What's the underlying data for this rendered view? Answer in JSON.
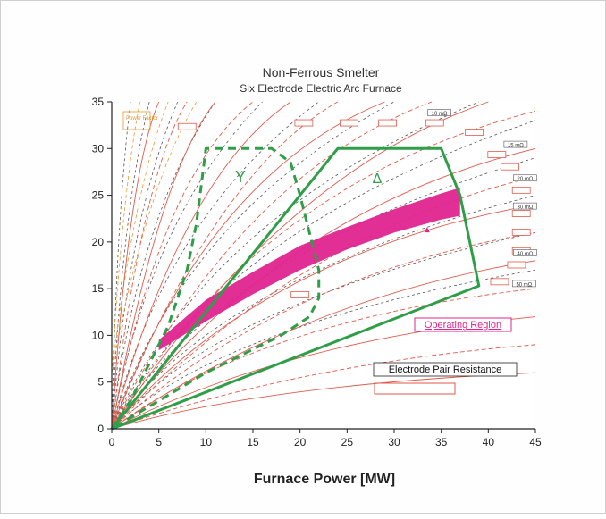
{
  "chart_data": {
    "type": "line",
    "title": "Non-Ferrous Smelter",
    "subtitle": "Six Electrode Electric Arc Furnace",
    "xlabel": "Furnace Power [MW]",
    "ylabel": "",
    "xlim": [
      0,
      45
    ],
    "ylim": [
      0,
      35
    ],
    "xticks": [
      "0",
      "5",
      "10",
      "15",
      "20",
      "25",
      "30",
      "35",
      "40",
      "45"
    ],
    "yticks": [
      "0",
      "5",
      "10",
      "15",
      "20",
      "25",
      "30",
      "35"
    ],
    "grid": false,
    "zones": {
      "wye": {
        "label": "Y",
        "color": "#2e9e48",
        "style": "dashed",
        "points": [
          [
            0,
            0
          ],
          [
            2,
            3
          ],
          [
            4,
            7
          ],
          [
            6,
            11
          ],
          [
            8,
            17
          ],
          [
            9,
            22
          ],
          [
            10,
            30
          ],
          [
            17,
            30
          ],
          [
            19,
            28.5
          ],
          [
            20,
            25
          ],
          [
            21,
            21
          ],
          [
            22,
            17
          ],
          [
            22,
            14
          ],
          [
            21,
            12
          ],
          [
            18,
            10
          ],
          [
            10,
            6
          ],
          [
            0,
            0
          ]
        ]
      },
      "delta": {
        "label": "Δ",
        "color": "#2e9e48",
        "style": "solid",
        "points": [
          [
            0,
            0
          ],
          [
            24,
            30
          ],
          [
            35,
            30
          ],
          [
            37,
            25
          ],
          [
            39,
            15.3
          ],
          [
            0,
            0
          ]
        ]
      }
    },
    "operating_region": {
      "label": "Operating Region",
      "color": "#e0248f",
      "upper": [
        [
          5,
          9.5
        ],
        [
          10,
          13.8
        ],
        [
          15,
          16.8
        ],
        [
          20,
          19.6
        ],
        [
          25,
          21.6
        ],
        [
          30,
          23.5
        ],
        [
          35,
          25.2
        ],
        [
          37,
          25.8
        ]
      ],
      "lower": [
        [
          5,
          8.4
        ],
        [
          10,
          11.5
        ],
        [
          15,
          14.4
        ],
        [
          20,
          17
        ],
        [
          25,
          19.2
        ],
        [
          30,
          21
        ],
        [
          35,
          22.4
        ],
        [
          37,
          22.8
        ]
      ]
    },
    "resistance_labels": [
      "10 mΩ",
      "15 mΩ",
      "20 mΩ",
      "30 mΩ",
      "40 mΩ",
      "50 mΩ"
    ],
    "legend": {
      "items": [
        {
          "label": "Power Factor",
          "color": "#e69b2c",
          "position": "top-left"
        },
        {
          "label": "Electrode Pair Resistance",
          "color": "#e05a4a",
          "position": "lower-right"
        }
      ]
    }
  }
}
